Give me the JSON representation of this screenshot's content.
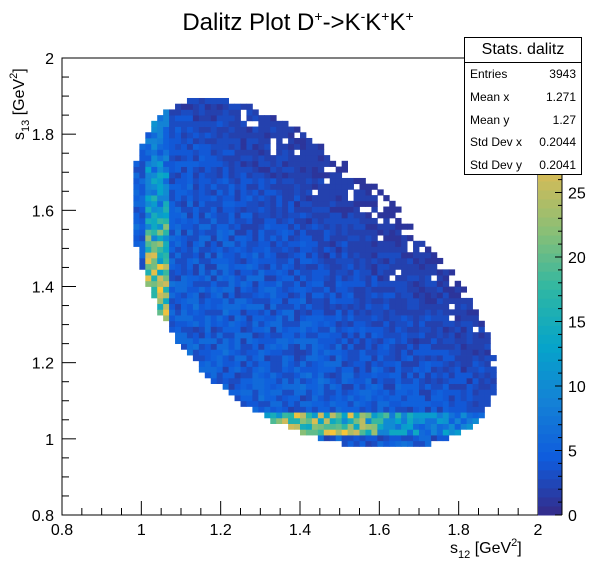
{
  "chart_data": {
    "type": "heatmap",
    "title": "Dalitz Plot D⁺->K⁻K⁺K⁺",
    "xlabel": "s12 [GeV^2]",
    "ylabel": "s13 [GeV^2]",
    "xlim": [
      0.8,
      2.0
    ],
    "ylim": [
      0.8,
      2.0
    ],
    "bins": 80,
    "x_ticks": [
      "0.8",
      "1",
      "1.2",
      "1.4",
      "1.6",
      "1.8",
      "2"
    ],
    "y_ticks": [
      "0.8",
      "1",
      "1.2",
      "1.4",
      "1.6",
      "1.8",
      "2"
    ],
    "colorbar": {
      "min": 0,
      "max": 35,
      "ticks": [
        "0",
        "5",
        "10",
        "15",
        "20",
        "25"
      ]
    },
    "resonance_band_s": 1.04,
    "peak_counts": 28,
    "grid": false
  },
  "stats": {
    "title": "Stats. dalitz",
    "rows": [
      {
        "label": "Entries",
        "value": "3943"
      },
      {
        "label": "Mean x",
        "value": "1.271"
      },
      {
        "label": "Mean y",
        "value": "1.27"
      },
      {
        "label": "Std Dev x",
        "value": "0.2044"
      },
      {
        "label": "Std Dev y",
        "value": "0.2041"
      }
    ]
  },
  "colors": {
    "palette": [
      "#352a87",
      "#0f5cdd",
      "#1481d6",
      "#06a4ca",
      "#2eb7a4",
      "#87bf77",
      "#d1bb59",
      "#fec832",
      "#f9fb0e"
    ]
  }
}
